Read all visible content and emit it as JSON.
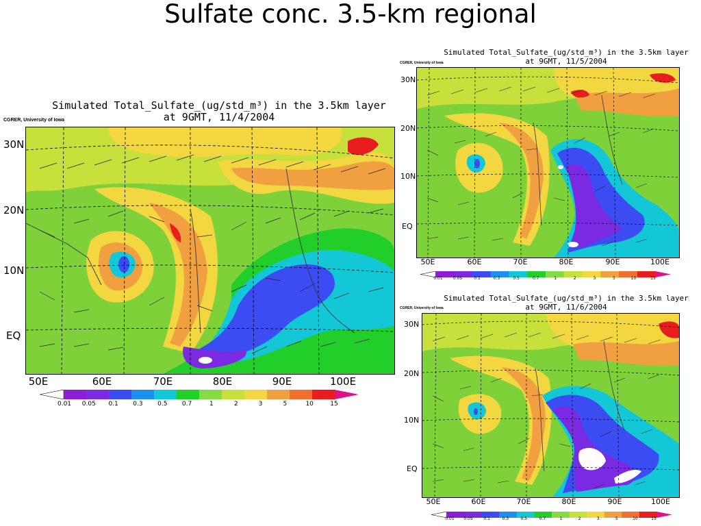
{
  "slide": {
    "title": "Sulfate conc. 3.5-km regional"
  },
  "colors": {
    "bins": [
      "#8a1fd6",
      "#7a2ae0",
      "#3b4cf2",
      "#1e8ff0",
      "#14c7d6",
      "#22cf2a",
      "#86da44",
      "#c8e03c",
      "#f2d740",
      "#f0a040",
      "#f07030",
      "#e81e1e"
    ],
    "low_arrow": "#ffffff",
    "high_arrow": "#e0108a"
  },
  "colorbar_labels": [
    "0.01",
    "0.05",
    "0.1",
    "0.3",
    "0.5",
    "0.7",
    "1",
    "2",
    "3",
    "5",
    "10",
    "15"
  ],
  "panels": [
    {
      "id": "nov4",
      "title_line1": "Simulated Total_Sulfate_(ug/std_m³) in the 3.5km layer",
      "title_line2": "at 9GMT, 11/4/2004",
      "credit": "CGRER, University of Iowa",
      "lat_labels": [
        "30N",
        "20N",
        "10N",
        "EQ"
      ],
      "lon_labels": [
        "50E",
        "60E",
        "70E",
        "80E",
        "90E",
        "100E"
      ]
    },
    {
      "id": "nov5",
      "title_line1": "Simulated Total_Sulfate_(ug/std_m³) in the 3.5km layer",
      "title_line2": "at 9GMT, 11/5/2004",
      "credit": "CGRER, University of Iowa",
      "lat_labels": [
        "30N",
        "20N",
        "10N",
        "EQ"
      ],
      "lon_labels": [
        "50E",
        "60E",
        "70E",
        "80E",
        "90E",
        "100E"
      ]
    },
    {
      "id": "nov6",
      "title_line1": "Simulated Total_Sulfate_(ug/std_m³) in the 3.5km layer",
      "title_line2": "at 9GMT, 11/6/2004",
      "credit": "CGRER, University of Iowa",
      "lat_labels": [
        "30N",
        "20N",
        "10N",
        "EQ"
      ],
      "lon_labels": [
        "50E",
        "60E",
        "70E",
        "80E",
        "90E",
        "100E"
      ]
    }
  ]
}
